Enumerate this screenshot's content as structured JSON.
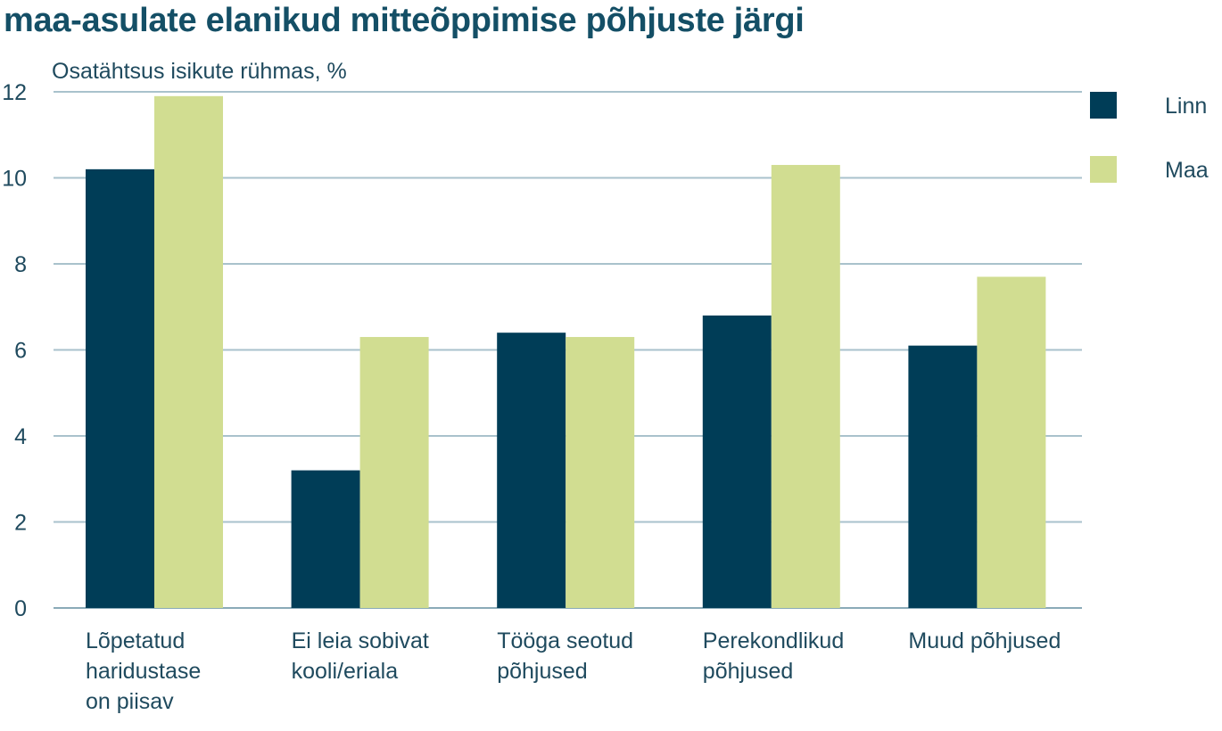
{
  "chart_data": {
    "type": "bar",
    "title": "maa-asulate elanikud mitteõppimise põhjuste järgi",
    "ylabel": "Osatähtsus isikute rühmas, %",
    "xlabel": "",
    "ylim": [
      0,
      12
    ],
    "yticks": [
      0,
      2,
      4,
      6,
      8,
      10,
      12
    ],
    "grid": true,
    "legend_position": "right",
    "categories": [
      [
        "Lõpetatud",
        "haridustase",
        "on piisav"
      ],
      [
        "Ei leia sobivat",
        "kooli/eriala"
      ],
      [
        "Tööga seotud",
        "põhjused"
      ],
      [
        "Perekondlikud",
        "põhjused"
      ],
      [
        "Muud põhjused"
      ]
    ],
    "series": [
      {
        "name": "Linn",
        "color": "#003d57",
        "values": [
          10.2,
          3.2,
          6.4,
          6.8,
          6.1
        ]
      },
      {
        "name": "Maa",
        "color": "#d1dd91",
        "values": [
          11.9,
          6.3,
          6.3,
          10.3,
          7.7
        ]
      }
    ]
  }
}
